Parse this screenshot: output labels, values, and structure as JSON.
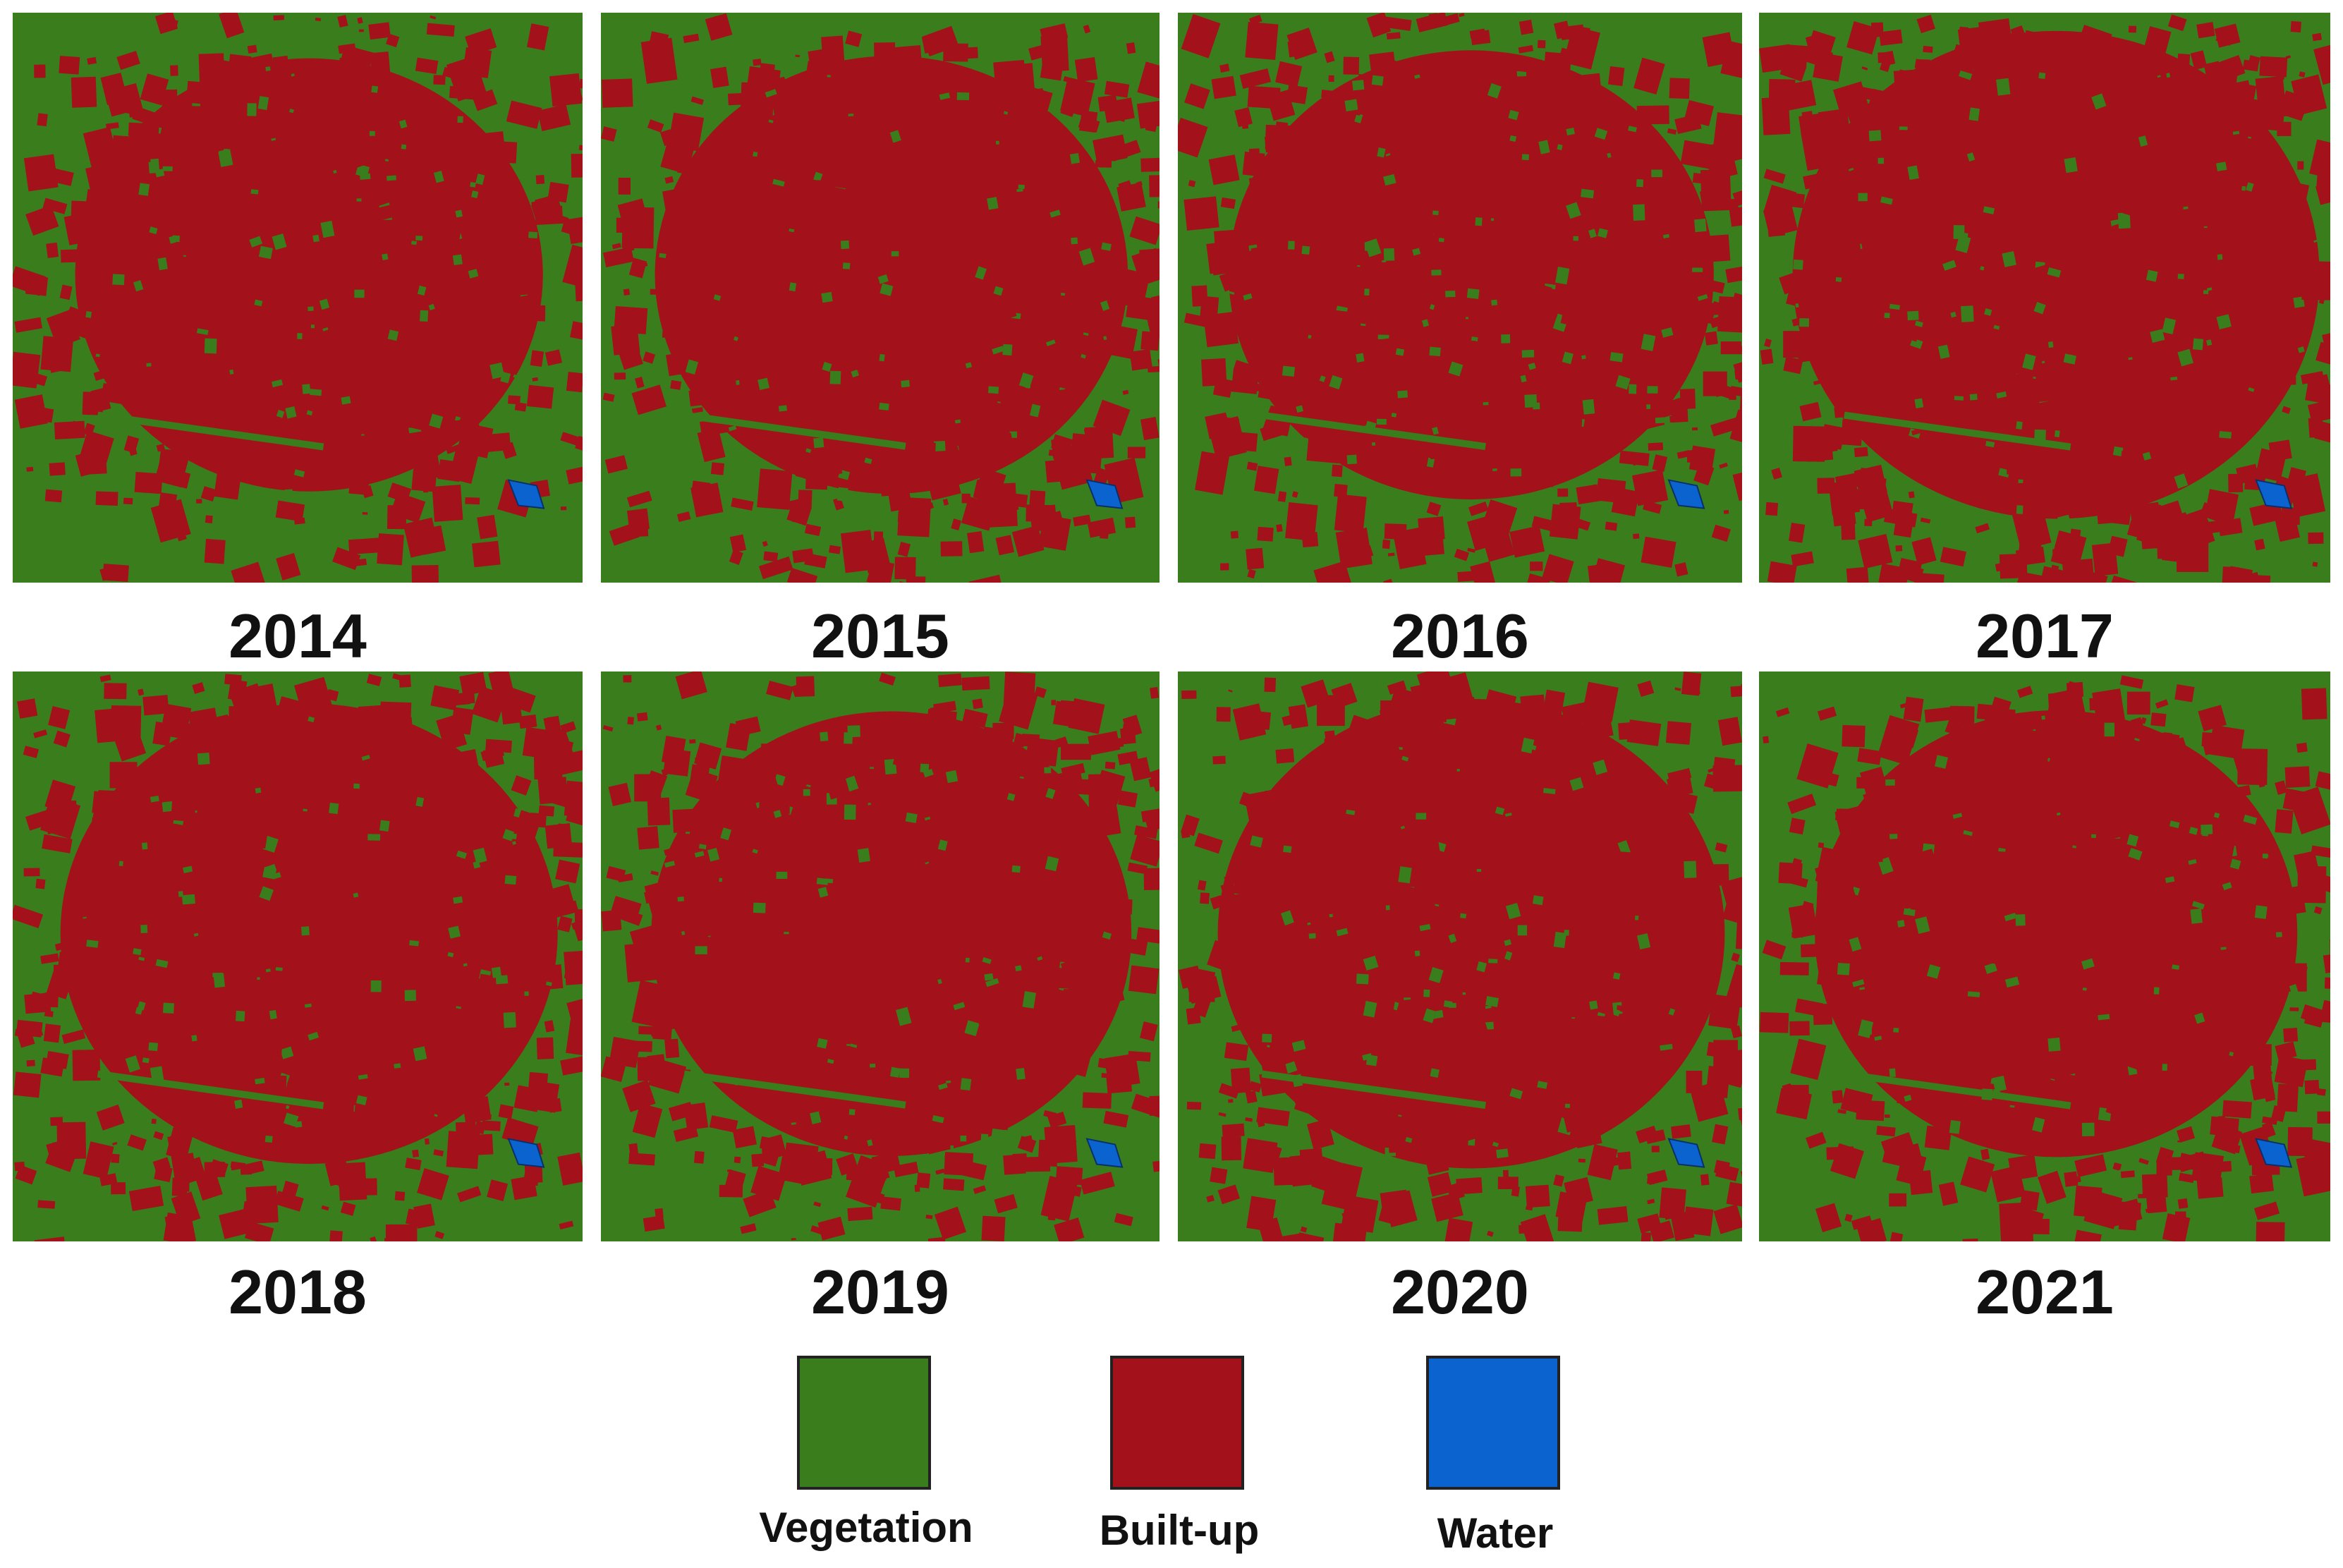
{
  "panels": [
    {
      "year": "2014",
      "builtup_share": 0.6
    },
    {
      "year": "2015",
      "builtup_share": 0.62
    },
    {
      "year": "2016",
      "builtup_share": 0.63
    },
    {
      "year": "2017",
      "builtup_share": 0.68
    },
    {
      "year": "2018",
      "builtup_share": 0.64
    },
    {
      "year": "2019",
      "builtup_share": 0.63
    },
    {
      "year": "2020",
      "builtup_share": 0.66
    },
    {
      "year": "2021",
      "builtup_share": 0.62
    }
  ],
  "legend": [
    {
      "label": "Vegetation",
      "color": "#3a7d1c"
    },
    {
      "label": "Built-up",
      "color": "#a3121a"
    },
    {
      "label": "Water",
      "color": "#0a63cf"
    }
  ],
  "colors": {
    "vegetation": "#3a7d1c",
    "builtup": "#a3121a",
    "water": "#0a63cf"
  }
}
